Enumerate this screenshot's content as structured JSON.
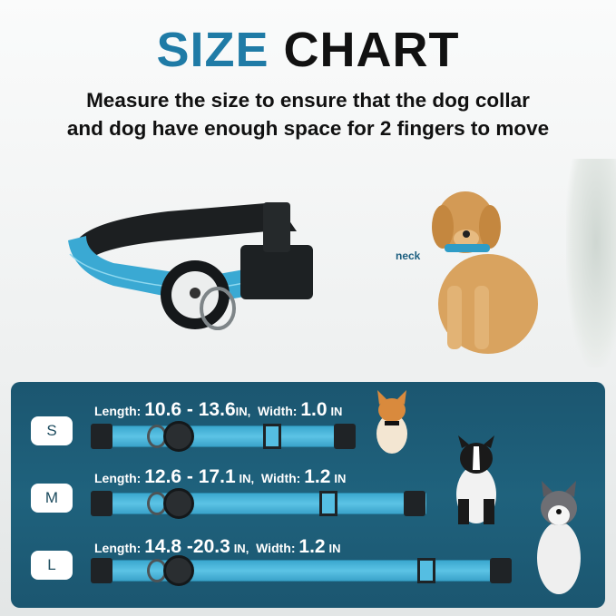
{
  "title": {
    "part1": "SIZE",
    "part2": "CHART"
  },
  "subtitle": {
    "line1": "Measure the size to ensure that the dog collar",
    "line2": "and dog have enough space for 2 fingers to move"
  },
  "neck_label": "neck",
  "colors": {
    "accent": "#1f7ba6",
    "panel": "#1d5c76",
    "strap": "#4db8de"
  },
  "sizes": [
    {
      "size": "S",
      "length_label": "Length:",
      "length": "10.6 - 13.6",
      "length_unit": "IN,",
      "width_label": "Width:",
      "width": "1.0",
      "width_unit": "IN"
    },
    {
      "size": "M",
      "length_label": "Length:",
      "length": "12.6 - 17.1",
      "length_unit": "IN,",
      "width_label": "Width:",
      "width": "1.2",
      "width_unit": "IN"
    },
    {
      "size": "L",
      "length_label": "Length:",
      "length": "14.8 -20.3",
      "length_unit": "IN,",
      "width_label": "Width:",
      "width": "1.2",
      "width_unit": "IN"
    }
  ]
}
